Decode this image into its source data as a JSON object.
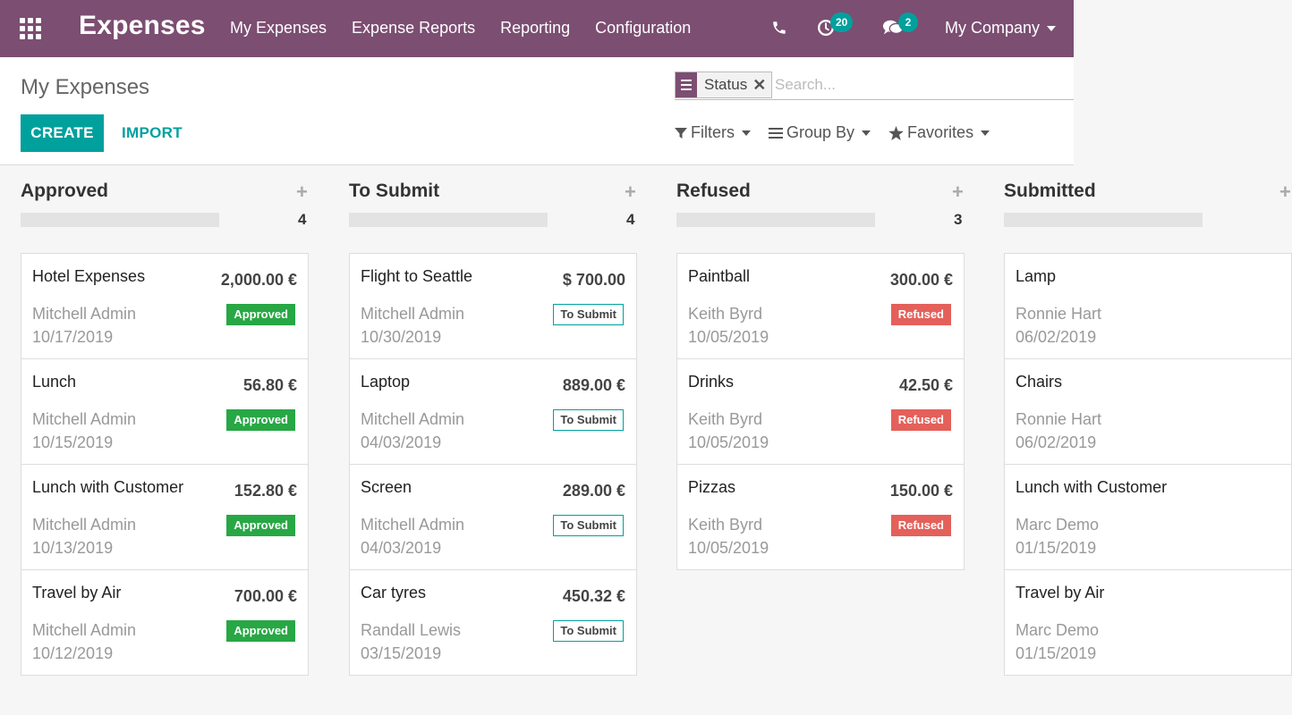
{
  "navbar": {
    "brand": "Expenses",
    "menu": [
      "My Expenses",
      "Expense Reports",
      "Reporting",
      "Configuration"
    ],
    "activity_count": "20",
    "message_count": "2",
    "company": "My Company",
    "color": "#7c4e72"
  },
  "control_panel": {
    "breadcrumb": "My Expenses",
    "create_label": "CREATE",
    "import_label": "IMPORT",
    "search": {
      "facet": "Status",
      "placeholder": "Search..."
    },
    "filters_label": "Filters",
    "groupby_label": "Group By",
    "favorites_label": "Favorites"
  },
  "columns": [
    {
      "title": "Approved",
      "count": "4",
      "cards": [
        {
          "name": "Hotel Expenses",
          "amount": "2,000.00 €",
          "employee": "Mitchell Admin",
          "date": "10/17/2019",
          "status": "Approved"
        },
        {
          "name": "Lunch",
          "amount": "56.80 €",
          "employee": "Mitchell Admin",
          "date": "10/15/2019",
          "status": "Approved"
        },
        {
          "name": "Lunch with Customer",
          "amount": "152.80 €",
          "employee": "Mitchell Admin",
          "date": "10/13/2019",
          "status": "Approved"
        },
        {
          "name": "Travel by Air",
          "amount": "700.00 €",
          "employee": "Mitchell Admin",
          "date": "10/12/2019",
          "status": "Approved"
        }
      ]
    },
    {
      "title": "To Submit",
      "count": "4",
      "cards": [
        {
          "name": "Flight to Seattle",
          "amount": "$ 700.00",
          "employee": "Mitchell Admin",
          "date": "10/30/2019",
          "status": "To Submit"
        },
        {
          "name": "Laptop",
          "amount": "889.00 €",
          "employee": "Mitchell Admin",
          "date": "04/03/2019",
          "status": "To Submit"
        },
        {
          "name": "Screen",
          "amount": "289.00 €",
          "employee": "Mitchell Admin",
          "date": "04/03/2019",
          "status": "To Submit"
        },
        {
          "name": "Car tyres",
          "amount": "450.32 €",
          "employee": "Randall Lewis",
          "date": "03/15/2019",
          "status": "To Submit"
        }
      ]
    },
    {
      "title": "Refused",
      "count": "3",
      "cards": [
        {
          "name": "Paintball",
          "amount": "300.00 €",
          "employee": "Keith Byrd",
          "date": "10/05/2019",
          "status": "Refused"
        },
        {
          "name": "Drinks",
          "amount": "42.50 €",
          "employee": "Keith Byrd",
          "date": "10/05/2019",
          "status": "Refused"
        },
        {
          "name": "Pizzas",
          "amount": "150.00 €",
          "employee": "Keith Byrd",
          "date": "10/05/2019",
          "status": "Refused"
        }
      ]
    },
    {
      "title": "Submitted",
      "count": "",
      "cards": [
        {
          "name": "Lamp",
          "amount": "",
          "employee": "Ronnie Hart",
          "date": "06/02/2019",
          "status": ""
        },
        {
          "name": "Chairs",
          "amount": "",
          "employee": "Ronnie Hart",
          "date": "06/02/2019",
          "status": ""
        },
        {
          "name": "Lunch with Customer",
          "amount": "",
          "employee": "Marc Demo",
          "date": "01/15/2019",
          "status": ""
        },
        {
          "name": "Travel by Air",
          "amount": "",
          "employee": "Marc Demo",
          "date": "01/15/2019",
          "status": ""
        }
      ]
    }
  ],
  "status_colors": {
    "Approved": "#28a745",
    "To Submit": "#00a09d",
    "Refused": "#e4605a"
  }
}
